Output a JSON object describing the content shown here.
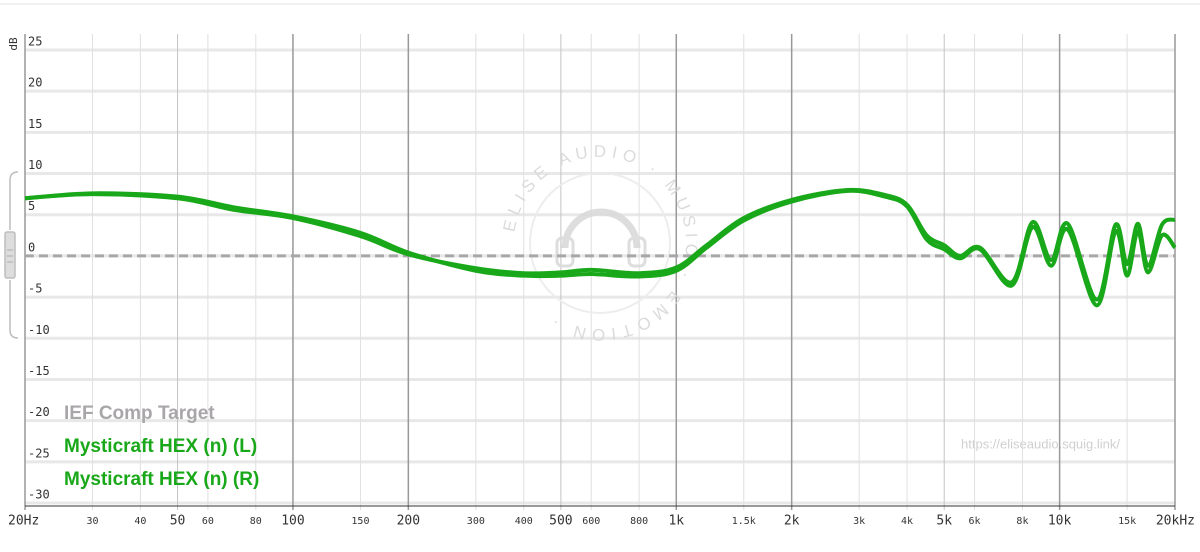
{
  "chart_data": {
    "type": "line",
    "log_x": true,
    "grid": true,
    "y_label": "dB",
    "watermark": "https://eliseaudio.squig.link/",
    "logo_text": "ELISE AUDIO · MUSIC · EMOTION ·",
    "legend": "bottom-left",
    "xlim": [
      20,
      20000
    ],
    "xticks": [
      {
        "value": 20,
        "label": "20Hz"
      },
      30,
      40,
      50,
      60,
      80,
      100,
      150,
      200,
      300,
      400,
      500,
      600,
      800,
      {
        "value": 1000,
        "label": "1k"
      },
      {
        "value": 1500,
        "label": "1.5k"
      },
      {
        "value": 2000,
        "label": "2k"
      },
      {
        "value": 3000,
        "label": "3k"
      },
      {
        "value": 4000,
        "label": "4k"
      },
      {
        "value": 5000,
        "label": "5k"
      },
      {
        "value": 6000,
        "label": "6k"
      },
      {
        "value": 8000,
        "label": "8k"
      },
      {
        "value": 10000,
        "label": "10k"
      },
      {
        "value": 15000,
        "label": "15k"
      },
      {
        "value": 20000,
        "label": "20kHz"
      }
    ],
    "ylim": [
      -30,
      25
    ],
    "yticks": [
      25,
      20,
      15,
      10,
      5,
      0,
      -5,
      -10,
      -15,
      -20,
      -25,
      -30
    ],
    "x": [
      20,
      30,
      50,
      70,
      100,
      150,
      200,
      300,
      400,
      500,
      600,
      800,
      1000,
      1200,
      1500,
      2000,
      2800,
      3500,
      4000,
      4500,
      5000,
      5500,
      6200,
      7500,
      8500,
      9500,
      10500,
      12500,
      14000,
      15000,
      16000,
      17000,
      18500,
      20000
    ],
    "series": [
      {
        "name": "IEF Comp Target",
        "color": "#a9a6a9",
        "dash": true,
        "values": [
          0,
          0,
          0,
          0,
          0,
          0,
          0,
          0,
          0,
          0,
          0,
          0,
          0,
          0,
          0,
          0,
          0,
          0,
          0,
          0,
          0,
          0,
          0,
          0,
          0,
          0,
          0,
          0,
          0,
          0,
          0,
          0,
          0,
          0
        ]
      },
      {
        "name": "Mysticraft HEX (n) (L)",
        "color": "#19a819",
        "values": [
          7.0,
          7.5,
          7.0,
          5.6,
          4.6,
          2.4,
          0.2,
          -1.5,
          -2.1,
          -2.0,
          -1.7,
          -2.1,
          -1.4,
          1.3,
          4.6,
          6.8,
          8.0,
          7.4,
          6.2,
          2.5,
          1.3,
          0.0,
          1.0,
          -3.2,
          4.1,
          -0.5,
          3.9,
          -5.3,
          3.8,
          -1.0,
          3.9,
          -1.2,
          3.8,
          4.4
        ]
      },
      {
        "name": "Mysticraft HEX (n) (R)",
        "color": "#19a819",
        "values": [
          7.0,
          7.6,
          7.2,
          5.9,
          4.8,
          2.8,
          0.4,
          -1.8,
          -2.4,
          -2.4,
          -2.2,
          -2.5,
          -1.8,
          1.0,
          4.3,
          6.6,
          7.9,
          7.2,
          6.0,
          2.0,
          0.8,
          -0.3,
          0.8,
          -3.6,
          3.5,
          -1.2,
          3.2,
          -6.0,
          3.0,
          -2.4,
          3.0,
          -2.0,
          2.5,
          1.0
        ]
      }
    ]
  }
}
